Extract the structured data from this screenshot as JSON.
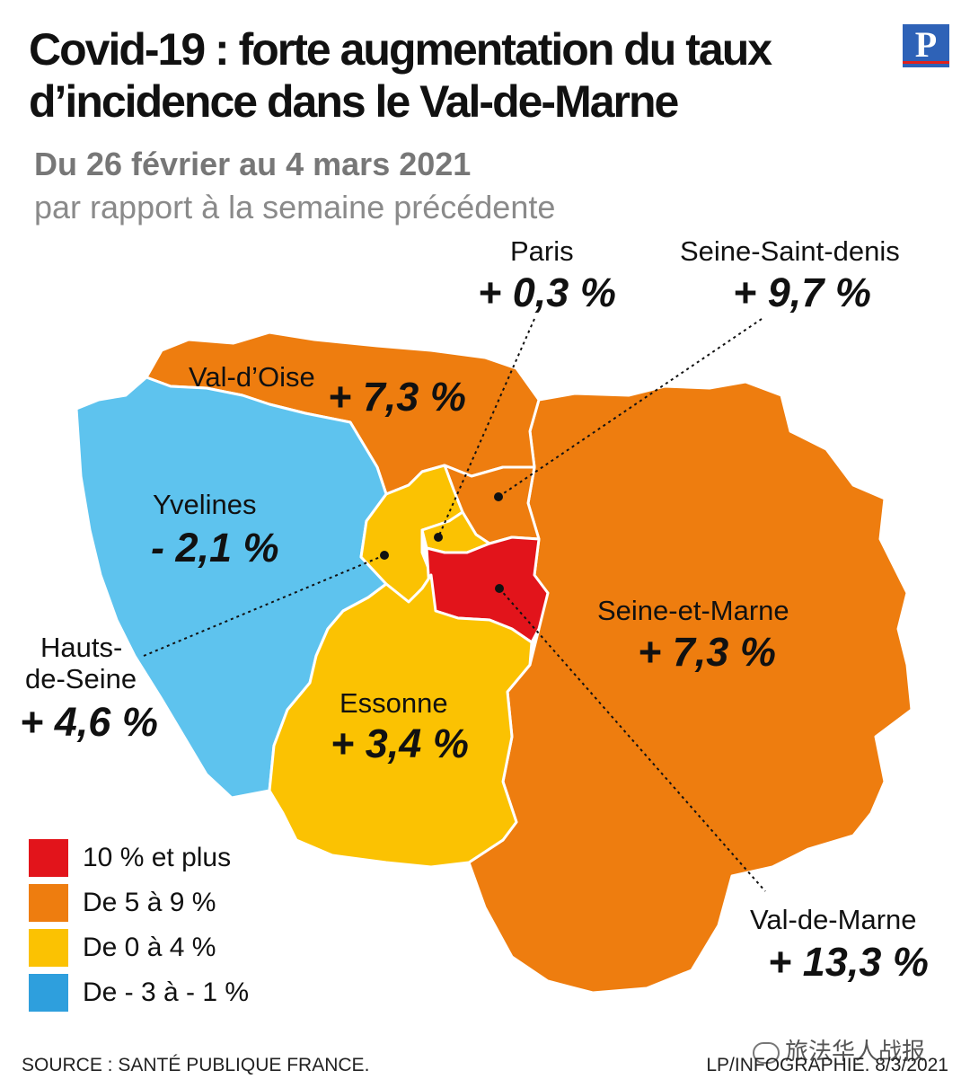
{
  "header": {
    "title_line1": "Covid-19 : forte augmentation du taux",
    "title_line2": "d’incidence dans le Val-de-Marne",
    "logo": "P",
    "subtitle": "Du 26 février au 4 mars 2021",
    "subtitle2": "par rapport à la semaine précédente"
  },
  "colors": {
    "red": "#e2141b",
    "orange": "#ee7d0f",
    "yellow": "#fbc202",
    "blue": "#5ec3ee"
  },
  "regions": [
    {
      "name": "Paris",
      "value": "+ 0,3 %",
      "change_pct": 0.3,
      "category": "yellow"
    },
    {
      "name": "Seine-Saint-denis",
      "value": "+ 9,7 %",
      "change_pct": 9.7,
      "category": "orange"
    },
    {
      "name": "Val-d’Oise",
      "value": "+ 7,3 %",
      "change_pct": 7.3,
      "category": "orange"
    },
    {
      "name": "Yvelines",
      "value": "- 2,1 %",
      "change_pct": -2.1,
      "category": "blue"
    },
    {
      "name": "Hauts-",
      "name2": "de-Seine",
      "value": "+ 4,6 %",
      "change_pct": 4.6,
      "category": "yellow"
    },
    {
      "name": "Essonne",
      "value": "+ 3,4 %",
      "change_pct": 3.4,
      "category": "yellow"
    },
    {
      "name": "Seine-et-Marne",
      "value": "+ 7,3 %",
      "change_pct": 7.3,
      "category": "orange"
    },
    {
      "name": "Val-de-Marne",
      "value": "+ 13,3 %",
      "change_pct": 13.3,
      "category": "red"
    }
  ],
  "legend": [
    {
      "label": "10 % et plus",
      "color": "#e2141b"
    },
    {
      "label": "De 5 à 9 %",
      "color": "#ee7d0f"
    },
    {
      "label": "De 0 à 4 %",
      "color": "#fbc202"
    },
    {
      "label": "De - 3 à - 1 %",
      "color": "#2e9fdd"
    }
  ],
  "footer": {
    "source": "SOURCE : SANTÉ PUBLIQUE FRANCE.",
    "credit": "LP/INFOGRAPHIE.  8/3/2021",
    "watermark": "旅法华人战报"
  }
}
